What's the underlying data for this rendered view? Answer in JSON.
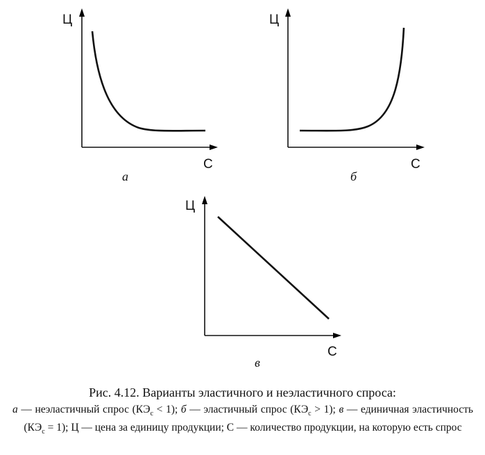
{
  "panels": [
    {
      "y_axis": "Ц",
      "x_axis": "С",
      "label": "а"
    },
    {
      "y_axis": "Ц",
      "x_axis": "С",
      "label": "б"
    },
    {
      "y_axis": "Ц",
      "x_axis": "С",
      "label": "в"
    }
  ],
  "caption": {
    "title": "Рис. 4.12. Варианты эластичного и неэластичного спроса:",
    "parts": [
      "а",
      " — неэластичный спрос (КЭ",
      "с",
      " < 1); ",
      "б",
      " — эластичный спрос (КЭ",
      "с",
      " > 1); ",
      "в",
      " — единичная эластичность (КЭ",
      "с",
      " = 1); Ц — цена за единицу продукции; С — количество продукции, на которую есть спрос"
    ]
  }
}
